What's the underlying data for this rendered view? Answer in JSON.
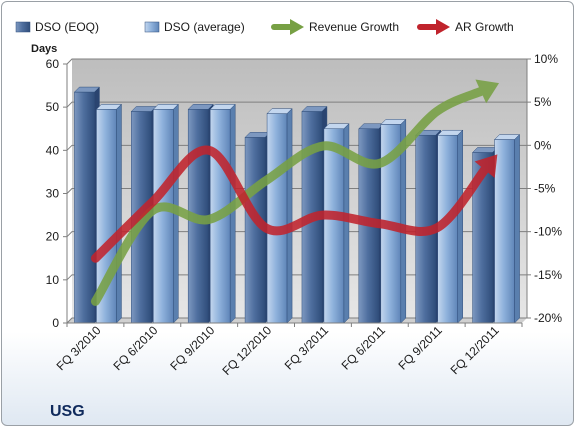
{
  "chart_data": {
    "type": "bar",
    "title": "",
    "company_label": "USG",
    "y_left_label": "Days",
    "y_left_range": [
      0,
      60
    ],
    "y_left_ticks": [
      "0",
      "10",
      "20",
      "30",
      "40",
      "50",
      "60"
    ],
    "y_right_range": [
      -20,
      10
    ],
    "y_right_ticks": [
      "-20%",
      "-15%",
      "-10%",
      "-5%",
      "0%",
      "5%",
      "10%"
    ],
    "grid": true,
    "legend_position": "top",
    "categories": [
      "FQ 3/2010",
      "FQ 6/2010",
      "FQ 9/2010",
      "FQ 12/2010",
      "FQ 3/2011",
      "FQ 6/2011",
      "FQ 9/2011",
      "FQ 12/2011"
    ],
    "series": [
      {
        "name": "DSO (EOQ)",
        "type": "bar",
        "axis": "left",
        "color": "#4f6f9f",
        "values": [
          53.5,
          49,
          49.5,
          43,
          49,
          45,
          43.5,
          39.5
        ]
      },
      {
        "name": "DSO (average)",
        "type": "bar",
        "axis": "left",
        "color": "#8fb2dc",
        "values": [
          49.5,
          49.5,
          49.5,
          48.5,
          45,
          46,
          43.5,
          42.5
        ]
      },
      {
        "name": "Revenue Growth",
        "type": "line",
        "axis": "right",
        "color": "#77a044",
        "values": [
          -17.5,
          -7,
          -8,
          -3.5,
          0.5,
          -1.5,
          4.5,
          7.5
        ]
      },
      {
        "name": "AR Growth",
        "type": "line",
        "axis": "right",
        "color": "#c0232c",
        "values": [
          -12.5,
          -6,
          0,
          -9,
          -7.5,
          -8.5,
          -9,
          -1
        ]
      }
    ]
  }
}
